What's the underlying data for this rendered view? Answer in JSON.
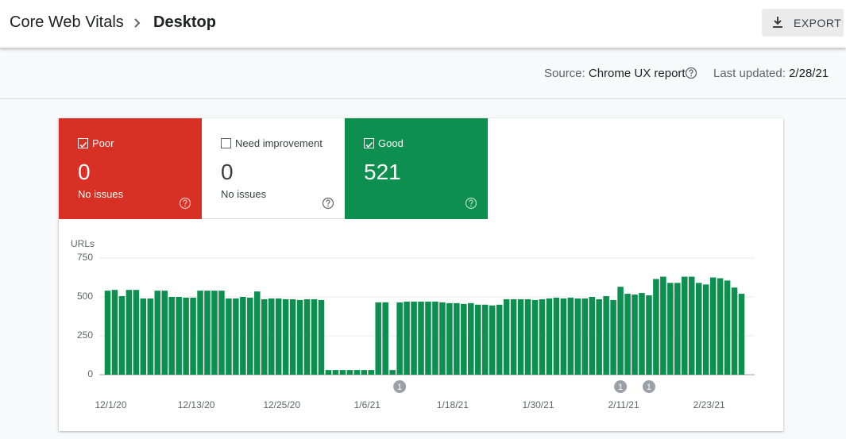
{
  "header": {
    "title": "Core Web Vitals",
    "subtitle": "Desktop",
    "export": "EXPORT"
  },
  "info": {
    "source_label": "Source:",
    "source": "Chrome UX report",
    "updated_label": "Last updated:",
    "updated": "2/28/21"
  },
  "cards": [
    {
      "label": "Poor",
      "count": 0,
      "note": "No issues",
      "color": "#d93025"
    },
    {
      "label": "Need improvement",
      "count": 0,
      "note": "No issues",
      "color": "#ffffff"
    },
    {
      "label": "Good",
      "count": 521,
      "color": "#0d904f"
    }
  ],
  "chart_data": {
    "type": "bar",
    "y_label": "URLs",
    "color": "#0d904f",
    "categories": [
      "12/1/20",
      null,
      null,
      null,
      null,
      null,
      null,
      null,
      null,
      null,
      null,
      null,
      "12/13/20",
      null,
      null,
      null,
      null,
      null,
      null,
      null,
      null,
      null,
      null,
      null,
      "12/25/20",
      null,
      null,
      null,
      null,
      null,
      null,
      null,
      null,
      null,
      null,
      null,
      "1/6/21",
      null,
      null,
      null,
      null,
      null,
      null,
      null,
      null,
      null,
      null,
      null,
      "1/18/21",
      null,
      null,
      null,
      null,
      null,
      null,
      null,
      null,
      null,
      null,
      null,
      "1/30/21",
      null,
      null,
      null,
      null,
      null,
      null,
      null,
      null,
      null,
      null,
      null,
      "2/11/21",
      null,
      null,
      null,
      null,
      null,
      null,
      null,
      null,
      null,
      null,
      null,
      "2/23/21",
      null,
      null,
      null,
      null,
      null
    ],
    "values": [
      540,
      545,
      505,
      545,
      545,
      490,
      490,
      540,
      540,
      500,
      500,
      495,
      495,
      540,
      540,
      540,
      540,
      490,
      490,
      500,
      495,
      535,
      485,
      490,
      490,
      485,
      485,
      480,
      485,
      485,
      480,
      30,
      30,
      30,
      30,
      30,
      30,
      30,
      465,
      465,
      30,
      465,
      470,
      470,
      470,
      470,
      470,
      465,
      460,
      460,
      455,
      460,
      450,
      450,
      445,
      450,
      485,
      485,
      485,
      485,
      480,
      485,
      490,
      495,
      490,
      495,
      490,
      490,
      500,
      485,
      505,
      480,
      565,
      520,
      515,
      525,
      510,
      615,
      630,
      590,
      590,
      630,
      630,
      590,
      580,
      625,
      620,
      605,
      560,
      520
    ],
    "ylim": [
      0,
      750
    ],
    "yticks": [
      0,
      250,
      500,
      750
    ],
    "grid": true,
    "annotations": [
      {
        "category_index": 41,
        "text": "1"
      },
      {
        "category_index": 72,
        "text": "1"
      },
      {
        "category_index": 76,
        "text": "1"
      }
    ]
  }
}
